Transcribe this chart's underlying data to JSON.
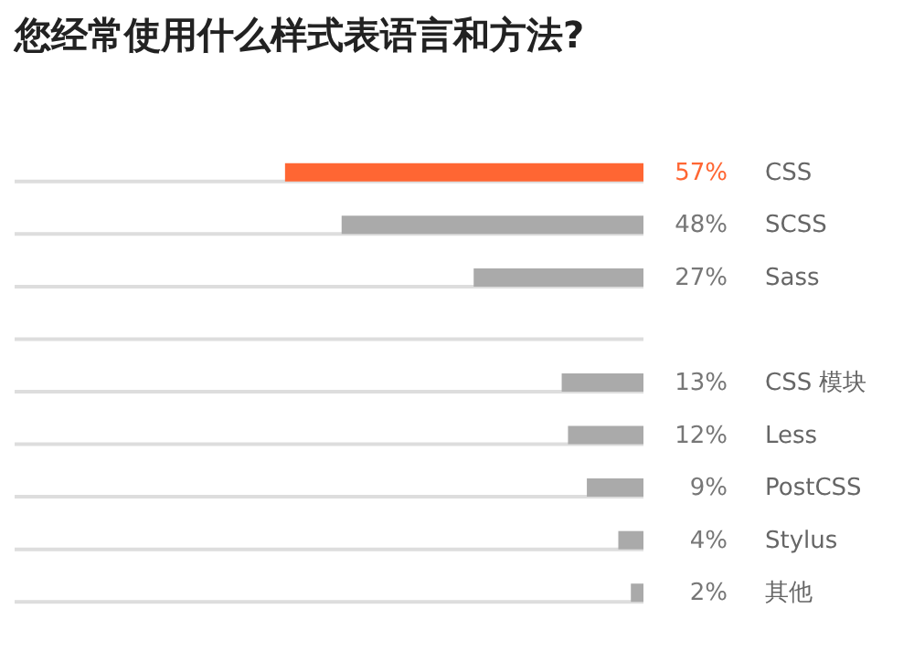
{
  "chart_data": {
    "type": "bar",
    "orientation": "horizontal",
    "title": "您经常使用什么样式表语言和方法?",
    "categories": [
      "CSS",
      "SCSS",
      "Sass",
      null,
      "CSS 模块",
      "Less",
      "PostCSS",
      "Stylus",
      "其他"
    ],
    "values": [
      57,
      48,
      27,
      null,
      13,
      12,
      9,
      4,
      2
    ],
    "value_labels": [
      "57%",
      "48%",
      "27%",
      null,
      "13%",
      "12%",
      "9%",
      "4%",
      "2%"
    ],
    "colors": [
      "#ff6633",
      "#aaaaaa",
      "#aaaaaa",
      "#aaaaaa",
      "#aaaaaa",
      "#aaaaaa",
      "#aaaaaa",
      "#aaaaaa",
      "#aaaaaa"
    ],
    "xlim": [
      100,
      0
    ],
    "grid": false
  }
}
